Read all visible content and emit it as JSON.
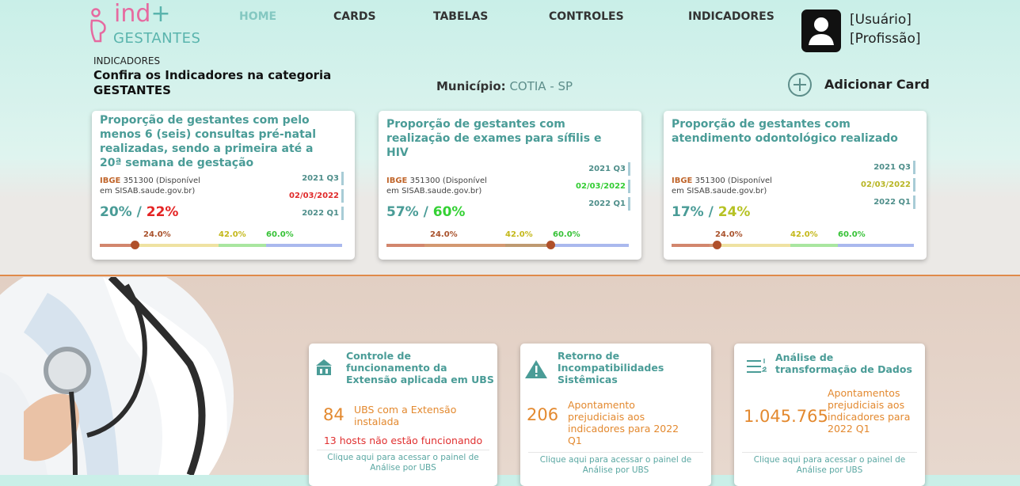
{
  "logo": {
    "word": "ind",
    "plus": "+",
    "subtitle": "GESTANTES"
  },
  "nav": [
    "HOME",
    "CARDS",
    "TABELAS",
    "CONTROLES",
    "INDICADORES"
  ],
  "user": {
    "name": "[Usuário]",
    "profession": "[Profissão]"
  },
  "header": {
    "section": "INDICADORES",
    "title": "Confira os Indicadores na categoria",
    "category": "GESTANTES",
    "municipio_label": "Município:",
    "municipio_value": "COTIA - SP",
    "add_card": "Adicionar Card"
  },
  "indicators": [
    {
      "title": "Proporção de gestantes com pelo menos 6 (seis) consultas pré-natal realizadas, sendo a primeira até a 20ª semana de gestação",
      "ibge_label": "IBGE",
      "ibge_text": "351300 (Disponível em SISAB.saude.gov.br)",
      "periods": [
        "2021 Q3",
        "02/03/2022",
        "2022 Q1"
      ],
      "value_previous": "20%",
      "separator": "/",
      "value_current": "22%",
      "thresholds": [
        "24.0%",
        "42.0%",
        "60.0%"
      ]
    },
    {
      "title": "Proporção de gestantes com realização de exames para sífilis e HIV",
      "ibge_label": "IBGE",
      "ibge_text": "351300 (Disponível em SISAB.saude.gov.br)",
      "periods": [
        "2021 Q3",
        "02/03/2022",
        "2022 Q1"
      ],
      "value_previous": "57%",
      "separator": "/",
      "value_current": "60%",
      "thresholds": [
        "24.0%",
        "42.0%",
        "60.0%"
      ]
    },
    {
      "title": "Proporção de gestantes com atendimento odontológico realizado",
      "ibge_label": "IBGE",
      "ibge_text": "351300 (Disponível em SISAB.saude.gov.br)",
      "periods": [
        "2021 Q3",
        "02/03/2022",
        "2022 Q1"
      ],
      "value_previous": "17%",
      "separator": "/",
      "value_current": "24%",
      "thresholds": [
        "24.0%",
        "42.0%",
        "60.0%"
      ]
    }
  ],
  "controls": [
    {
      "title": "Controle de funcionamento da Extensão aplicada em UBS",
      "number": "84",
      "description": "UBS com a Extensão instalada",
      "alert": "13 hosts não estão funcionando",
      "link": "Clique aqui para acessar o painel de Análise por UBS"
    },
    {
      "title": "Retorno de Incompatibilidades Sistêmicas",
      "number": "206",
      "description": "Apontamento prejudiciais aos indicadores para 2022 Q1",
      "link": "Clique aqui para acessar o painel de Análise por UBS"
    },
    {
      "title": "Análise de transformação de Dados",
      "number": "1.045.765",
      "description": "Apontamentos prejudiciais aos indicadores para 2022 Q1",
      "link": "Clique aqui para acessar o painel de Análise por UBS"
    }
  ]
}
